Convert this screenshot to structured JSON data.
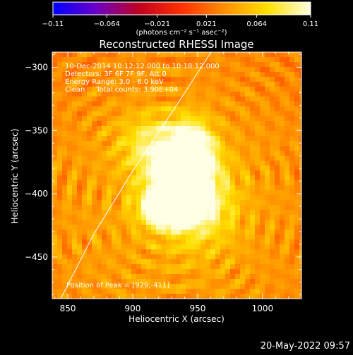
{
  "chart_data": {
    "type": "heatmap",
    "title": "Reconstructed RHESSI Image",
    "xlabel": "Heliocentric X (arcsec)",
    "ylabel": "Heliocentric Y (arcsec)",
    "xlim": [
      838,
      1030
    ],
    "ylim": [
      -483,
      -288
    ],
    "x_ticks": [
      {
        "value": 850,
        "label": "850"
      },
      {
        "value": 900,
        "label": "900"
      },
      {
        "value": 950,
        "label": "950"
      },
      {
        "value": 1000,
        "label": "1000"
      }
    ],
    "y_ticks": [
      {
        "value": -300,
        "label": "−300"
      },
      {
        "value": -350,
        "label": "−350"
      },
      {
        "value": -400,
        "label": "−400"
      },
      {
        "value": -450,
        "label": "−450"
      }
    ],
    "colorbar": {
      "min": -0.11,
      "max": 0.11,
      "ticks": [
        {
          "value": -0.11,
          "label": "−0.11"
        },
        {
          "value": -0.064,
          "label": "−0.064"
        },
        {
          "value": -0.021,
          "label": "−0.021"
        },
        {
          "value": 0.021,
          "label": "0.021"
        },
        {
          "value": 0.064,
          "label": "0.064"
        },
        {
          "value": 0.11,
          "label": "0.11"
        }
      ],
      "units": "(photons cm⁻² s⁻¹ asec⁻²)",
      "colormap": [
        "#0000ff",
        "#6a00c8",
        "#c00020",
        "#ff3000",
        "#ff9000",
        "#ffe000",
        "#ffffe6"
      ]
    },
    "annotations": [
      "10-Dec-2014 10:12:12.000 to 10:18:12.000",
      "Detectors: 3F 6F 7F 9F, Att 0",
      "Energy Range: 3.0 - 6.0 keV",
      "Clean     Total counts: 3.90E+04"
    ],
    "peak_label": "Position of Peak = [929,-411]",
    "peak": {
      "x": 929,
      "y": -411
    },
    "limb_line": [
      {
        "x": 843,
        "y": -486
      },
      {
        "x": 870,
        "y": -432
      },
      {
        "x": 900,
        "y": -382
      },
      {
        "x": 930,
        "y": -336
      },
      {
        "x": 961,
        "y": -287
      }
    ],
    "sources": [
      {
        "x": 929,
        "y": -411,
        "sx": 14,
        "sy": 9,
        "amp": 0.11
      },
      {
        "x": 946,
        "y": -368,
        "sx": 11,
        "sy": 16,
        "amp": 0.095
      },
      {
        "x": 934,
        "y": -389,
        "sx": 18,
        "sy": 22,
        "amp": 0.07
      },
      {
        "x": 915,
        "y": -360,
        "sx": 18,
        "sy": 16,
        "amp": 0.04
      },
      {
        "x": 952,
        "y": -408,
        "sx": 20,
        "sy": 24,
        "amp": 0.045
      }
    ],
    "background_level": 0.047,
    "ripple_amplitude": 0.018
  },
  "footer": {
    "date": "20-May-2022 09:57"
  }
}
